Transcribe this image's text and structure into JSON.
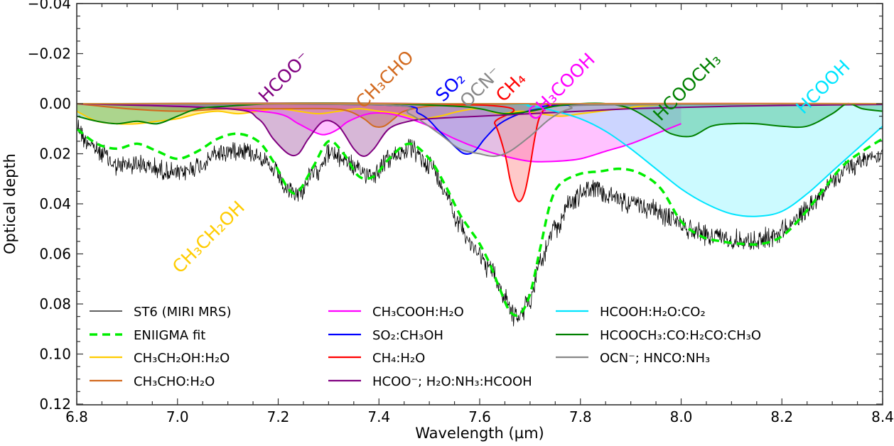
{
  "chart_data": {
    "type": "line",
    "title": "",
    "xlabel": "Wavelength (µm)",
    "ylabel": "Optical depth",
    "xlim": [
      6.8,
      8.4
    ],
    "ylim": [
      0.125,
      -0.04
    ],
    "y_inverted": true,
    "grid": false,
    "xticks": [
      6.8,
      7.0,
      7.2,
      7.4,
      7.6,
      7.8,
      8.0,
      8.2,
      8.4
    ],
    "xtick_labels": [
      "6.8",
      "7.0",
      "7.2",
      "7.4",
      "7.6",
      "7.8",
      "8.0",
      "8.2",
      "8.4"
    ],
    "yticks": [
      -0.04,
      -0.02,
      0.0,
      0.02,
      0.04,
      0.06,
      0.08,
      0.1,
      0.12
    ],
    "ytick_labels": [
      "−0.04",
      "−0.02",
      "0.00",
      "0.02",
      "0.04",
      "0.06",
      "0.08",
      "0.10",
      "0.12"
    ],
    "legend_placement": "lower-center",
    "series": [
      {
        "name": "ST6 (MIRI MRS)",
        "key": "observed",
        "color": "#000000",
        "style": "solid-noisy",
        "noise_amplitude": 0.0035,
        "x": [
          6.8,
          6.82,
          6.85,
          6.88,
          6.92,
          6.96,
          7.0,
          7.04,
          7.08,
          7.12,
          7.16,
          7.19,
          7.22,
          7.24,
          7.27,
          7.3,
          7.33,
          7.36,
          7.39,
          7.42,
          7.46,
          7.5,
          7.53,
          7.56,
          7.59,
          7.62,
          7.65,
          7.67,
          7.68,
          7.7,
          7.72,
          7.75,
          7.78,
          7.82,
          7.86,
          7.9,
          7.94,
          7.98,
          8.02,
          8.06,
          8.1,
          8.14,
          8.18,
          8.22,
          8.26,
          8.3,
          8.34,
          8.38,
          8.4
        ],
        "y": [
          0.009,
          0.015,
          0.02,
          0.025,
          0.024,
          0.026,
          0.028,
          0.025,
          0.02,
          0.018,
          0.02,
          0.027,
          0.035,
          0.036,
          0.028,
          0.02,
          0.022,
          0.027,
          0.028,
          0.022,
          0.018,
          0.024,
          0.034,
          0.048,
          0.058,
          0.066,
          0.077,
          0.085,
          0.085,
          0.078,
          0.063,
          0.05,
          0.039,
          0.034,
          0.037,
          0.04,
          0.042,
          0.046,
          0.05,
          0.053,
          0.054,
          0.055,
          0.053,
          0.048,
          0.04,
          0.031,
          0.025,
          0.021,
          0.02
        ]
      },
      {
        "name": "ENIIGMA fit",
        "key": "fit",
        "color": "#00ee00",
        "style": "dashed",
        "x": [
          6.8,
          6.84,
          6.88,
          6.92,
          6.96,
          7.0,
          7.04,
          7.08,
          7.12,
          7.16,
          7.19,
          7.22,
          7.24,
          7.27,
          7.3,
          7.33,
          7.36,
          7.39,
          7.42,
          7.46,
          7.5,
          7.53,
          7.56,
          7.58,
          7.6,
          7.62,
          7.64,
          7.66,
          7.68,
          7.7,
          7.72,
          7.74,
          7.76,
          7.8,
          7.84,
          7.88,
          7.92,
          7.96,
          8.0,
          8.04,
          8.08,
          8.12,
          8.16,
          8.2,
          8.24,
          8.28,
          8.32,
          8.36,
          8.4
        ],
        "y": [
          0.01,
          0.016,
          0.018,
          0.016,
          0.019,
          0.022,
          0.019,
          0.014,
          0.012,
          0.015,
          0.023,
          0.034,
          0.035,
          0.025,
          0.015,
          0.02,
          0.029,
          0.029,
          0.022,
          0.016,
          0.022,
          0.032,
          0.044,
          0.05,
          0.056,
          0.064,
          0.074,
          0.083,
          0.084,
          0.076,
          0.058,
          0.04,
          0.032,
          0.028,
          0.027,
          0.026,
          0.028,
          0.034,
          0.047,
          0.053,
          0.055,
          0.056,
          0.056,
          0.053,
          0.045,
          0.035,
          0.025,
          0.019,
          0.014
        ]
      },
      {
        "name": "CH₃CH₂OH:H₂O",
        "key": "ethanol",
        "color": "#ffcc00",
        "fill": "#ffcc00",
        "x": [
          6.8,
          6.84,
          6.88,
          6.92,
          6.96,
          7.0,
          7.04,
          7.08,
          7.12,
          7.16,
          7.2,
          7.24,
          7.28,
          7.32,
          7.36,
          7.4,
          7.44,
          7.48,
          7.52,
          7.56,
          7.6,
          7.64,
          7.68,
          7.72,
          7.76,
          7.8,
          7.84,
          7.88,
          7.92,
          7.96,
          8.0,
          8.4
        ],
        "y": [
          0.003,
          0.007,
          0.008,
          0.008,
          0.007,
          0.006,
          0.004,
          0.003,
          0.004,
          0.003,
          0.002,
          0.003,
          0.004,
          0.003,
          0.002,
          0.003,
          0.004,
          0.006,
          0.005,
          0.003,
          0.002,
          0.004,
          0.003,
          0.004,
          0.005,
          0.004,
          0.003,
          0.002,
          0.001,
          0.0005,
          0.0,
          0.0
        ]
      },
      {
        "name": "CH₃CHO:H₂O",
        "key": "acetaldehyde",
        "color": "#d2691e",
        "fill": "#d2691e",
        "x": [
          6.8,
          6.9,
          7.0,
          7.1,
          7.2,
          7.3,
          7.34,
          7.37,
          7.39,
          7.41,
          7.43,
          7.45,
          7.5,
          7.6,
          7.7,
          8.4
        ],
        "y": [
          0.0,
          0.002,
          0.003,
          0.002,
          0.002,
          0.002,
          0.003,
          0.006,
          0.009,
          0.009,
          0.006,
          0.003,
          0.001,
          0.0005,
          0.0002,
          0.0
        ]
      },
      {
        "name": "CH₃COOH:H₂O",
        "key": "acetic_acid",
        "color": "#ff00ff",
        "fill": "#ff66ff",
        "x": [
          6.8,
          7.0,
          7.1,
          7.2,
          7.24,
          7.28,
          7.3,
          7.32,
          7.34,
          7.38,
          7.42,
          7.46,
          7.5,
          7.55,
          7.6,
          7.65,
          7.7,
          7.75,
          7.8,
          7.85,
          7.9,
          7.95,
          8.0
        ],
        "y": [
          0.0,
          0.001,
          0.002,
          0.004,
          0.008,
          0.012,
          0.012,
          0.01,
          0.007,
          0.004,
          0.004,
          0.006,
          0.009,
          0.014,
          0.018,
          0.021,
          0.023,
          0.023,
          0.022,
          0.019,
          0.016,
          0.012,
          0.008
        ]
      },
      {
        "name": "SO₂:CH₃OH",
        "key": "so2",
        "color": "#0000ff",
        "fill": "#6666ff",
        "x": [
          6.8,
          7.4,
          7.48,
          7.52,
          7.55,
          7.57,
          7.59,
          7.61,
          7.64,
          7.68,
          7.72,
          7.8,
          8.4
        ],
        "y": [
          0.0,
          0.0005,
          0.004,
          0.011,
          0.017,
          0.02,
          0.019,
          0.014,
          0.008,
          0.004,
          0.002,
          0.0005,
          0.0
        ]
      },
      {
        "name": "CH₄:H₂O",
        "key": "methane",
        "color": "#ff0000",
        "fill": "#ff7777",
        "x": [
          6.8,
          7.6,
          7.63,
          7.65,
          7.66,
          7.67,
          7.68,
          7.69,
          7.7,
          7.71,
          7.72,
          7.74,
          7.8,
          8.4
        ],
        "y": [
          0.0,
          0.0005,
          0.008,
          0.02,
          0.03,
          0.037,
          0.039,
          0.035,
          0.025,
          0.013,
          0.005,
          0.001,
          0.0,
          0.0
        ]
      },
      {
        "name": "HCOO⁻; H₂O:NH₃:HCOOH",
        "key": "formate",
        "color": "#800080",
        "fill": "#9b4a9b",
        "x": [
          6.8,
          7.1,
          7.16,
          7.19,
          7.22,
          7.24,
          7.26,
          7.29,
          7.32,
          7.35,
          7.37,
          7.39,
          7.42,
          7.46,
          7.5,
          7.6,
          7.7,
          7.8,
          7.9,
          8.0,
          8.1,
          8.2,
          8.3,
          8.4
        ],
        "y": [
          0.0,
          0.002,
          0.006,
          0.014,
          0.02,
          0.02,
          0.014,
          0.007,
          0.009,
          0.018,
          0.021,
          0.018,
          0.01,
          0.007,
          0.006,
          0.005,
          0.004,
          0.003,
          0.002,
          0.0015,
          0.001,
          0.0007,
          0.0005,
          0.0003
        ]
      },
      {
        "name": "HCOOH:H₂O:CO₂",
        "key": "formic_acid",
        "color": "#00e5ff",
        "fill": "#7ff3ff",
        "x": [
          6.8,
          7.6,
          7.7,
          7.75,
          7.8,
          7.85,
          7.9,
          7.95,
          8.0,
          8.05,
          8.1,
          8.15,
          8.2,
          8.25,
          8.3,
          8.35,
          8.4
        ],
        "y": [
          0.0,
          0.0,
          0.001,
          0.003,
          0.006,
          0.011,
          0.018,
          0.026,
          0.034,
          0.04,
          0.044,
          0.045,
          0.043,
          0.036,
          0.027,
          0.018,
          0.009
        ]
      },
      {
        "name": "HCOOCH₃:CO:H₂CO:CH₃O",
        "key": "methyl_formate",
        "color": "#008000",
        "fill": "#2fb47a",
        "x": [
          6.8,
          6.84,
          6.88,
          6.92,
          6.96,
          7.0,
          7.04,
          7.1,
          7.2,
          7.4,
          7.55,
          7.6,
          7.65,
          7.7,
          7.75,
          7.8,
          7.85,
          7.9,
          7.95,
          7.98,
          8.02,
          8.06,
          8.1,
          8.15,
          8.2,
          8.25,
          8.3,
          8.33,
          8.36,
          8.4
        ],
        "y": [
          0.005,
          0.007,
          0.008,
          0.007,
          0.008,
          0.005,
          0.002,
          0.001,
          0.0,
          0.0,
          0.001,
          0.002,
          0.004,
          0.003,
          0.001,
          0.0,
          0.0,
          0.002,
          0.008,
          0.012,
          0.013,
          0.009,
          0.008,
          0.008,
          0.009,
          0.009,
          0.004,
          -0.0,
          0.002,
          0.003
        ]
      },
      {
        "name": "OCN⁻; HNCO:NH₃",
        "key": "ocn",
        "color": "#888888",
        "fill": "#bbbbbb",
        "x": [
          6.8,
          7.4,
          7.46,
          7.52,
          7.56,
          7.6,
          7.63,
          7.66,
          7.7,
          7.74,
          7.78,
          7.84,
          8.4
        ],
        "y": [
          0.0,
          0.0005,
          0.004,
          0.012,
          0.018,
          0.02,
          0.021,
          0.019,
          0.013,
          0.006,
          0.002,
          0.0005,
          0.0
        ]
      }
    ],
    "annotations": [
      {
        "text": "CH₃CH₂OH",
        "color": "#ffcc00",
        "x": 7.07,
        "y": 0.055
      },
      {
        "text": "HCOO⁻",
        "color": "#800080",
        "x": 7.22,
        "y": -0.009
      },
      {
        "text": "CH₃CHO",
        "color": "#d2691e",
        "x": 7.42,
        "y": -0.008
      },
      {
        "text": "SO₂",
        "color": "#0000ff",
        "x": 7.55,
        "y": -0.005
      },
      {
        "text": "OCN⁻",
        "color": "#888888",
        "x": 7.61,
        "y": -0.005
      },
      {
        "text": "CH₄",
        "color": "#ff0000",
        "x": 7.67,
        "y": -0.005
      },
      {
        "text": "CH₃COOH",
        "color": "#ff00ff",
        "x": 7.77,
        "y": -0.005
      },
      {
        "text": "HCOOCH₃",
        "color": "#008000",
        "x": 8.02,
        "y": -0.005
      },
      {
        "text": "HCOOH",
        "color": "#00e5ff",
        "x": 8.29,
        "y": -0.005
      }
    ]
  }
}
